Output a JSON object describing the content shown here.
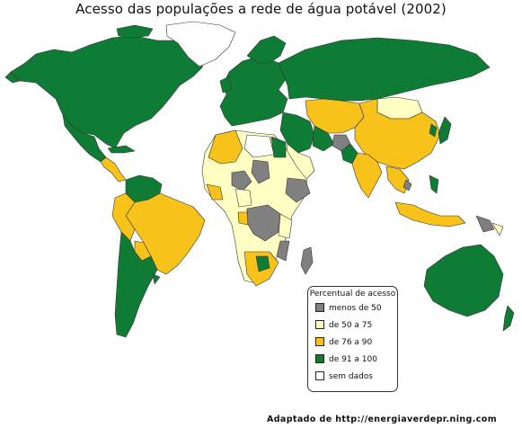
{
  "title": "Acesso das populações a rede de água potável (2002)",
  "legend": {
    "title": "Percentual de acesso",
    "items": [
      {
        "label": "menos de 50",
        "color": "#808080"
      },
      {
        "label": "de 50 a 75",
        "color": "#ffffc4"
      },
      {
        "label": "de 76 a 90",
        "color": "#f7c21a"
      },
      {
        "label": "de 91 a 100",
        "color": "#0f7c35"
      },
      {
        "label": "sem dados",
        "color": "#ffffff"
      }
    ]
  },
  "source": "Adaptado de http://energiaverdepr.ning.com"
}
